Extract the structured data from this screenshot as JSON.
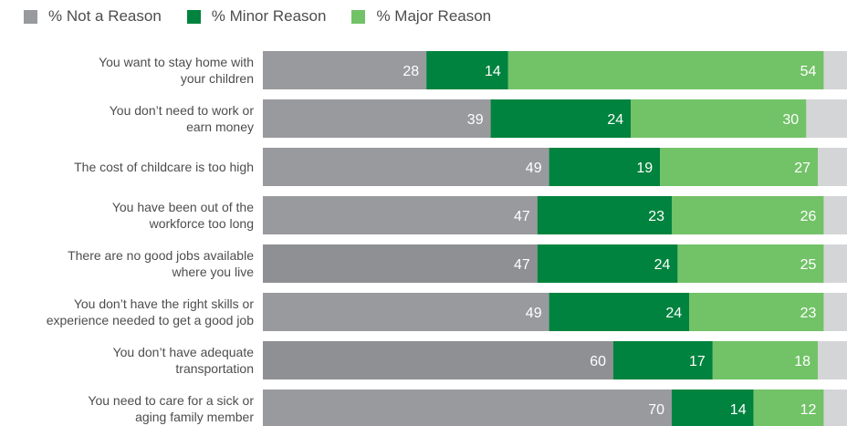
{
  "colors": {
    "not_a_reason": "#999a9e",
    "not_a_reason_alt": "#8f9094",
    "minor_reason": "#00833e",
    "major_reason": "#72c267",
    "remainder": "#d4d5d7",
    "label_text": "#4d4d4d"
  },
  "legend": [
    {
      "label": "% Not a Reason",
      "color": "#999a9e"
    },
    {
      "label": "% Minor Reason",
      "color": "#00833e"
    },
    {
      "label": "% Major Reason",
      "color": "#72c267"
    }
  ],
  "chart_data": {
    "type": "bar",
    "orientation": "horizontal",
    "stacked": true,
    "xlim": [
      0,
      100
    ],
    "grid": false,
    "legend_position": "top-left",
    "categories": [
      [
        "You want to stay home with",
        "your children"
      ],
      [
        "You don’t need to work or",
        "earn money"
      ],
      [
        "The cost of childcare is too high"
      ],
      [
        "You have been out of the",
        "workforce too long"
      ],
      [
        "There are no good jobs available",
        "where you live"
      ],
      [
        "You don’t have the right skills or",
        "experience needed to get a good job"
      ],
      [
        "You don’t have adequate",
        "transportation"
      ],
      [
        "You need to care for a sick or",
        "aging family member"
      ]
    ],
    "series": [
      {
        "name": "% Not a Reason",
        "values": [
          28,
          39,
          49,
          47,
          47,
          49,
          60,
          70
        ]
      },
      {
        "name": "% Minor Reason",
        "values": [
          14,
          24,
          19,
          23,
          24,
          24,
          17,
          14
        ]
      },
      {
        "name": "% Major Reason",
        "values": [
          54,
          30,
          27,
          26,
          25,
          23,
          18,
          12
        ]
      }
    ]
  }
}
